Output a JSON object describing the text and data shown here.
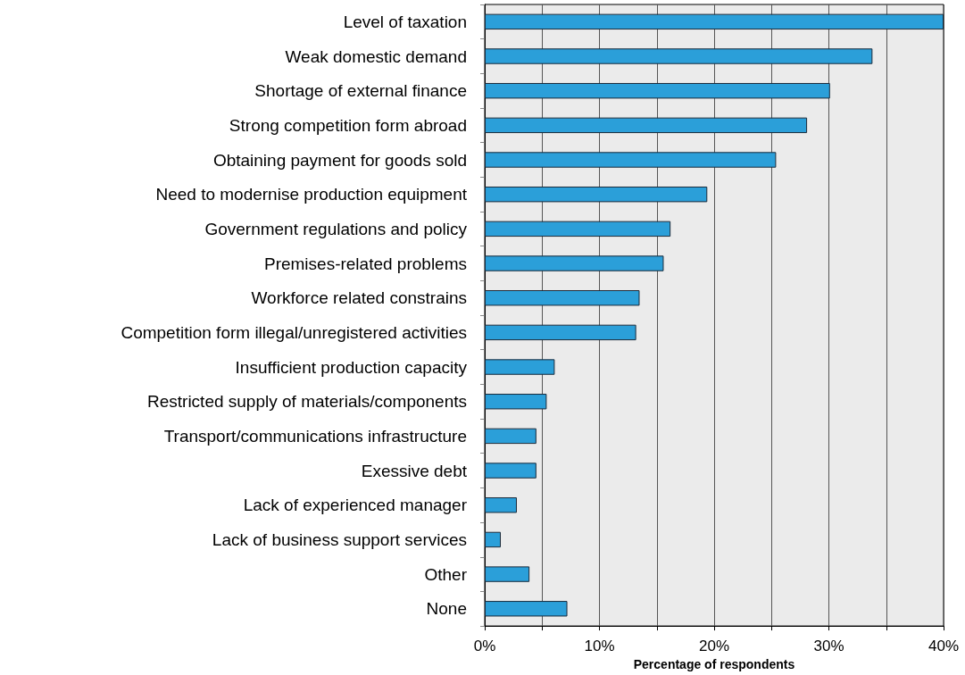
{
  "chart_data": {
    "type": "bar",
    "orientation": "horizontal",
    "xlabel": "Percentage of respondents",
    "categories": [
      "Level of taxation",
      "Weak domestic demand",
      "Shortage of external finance",
      "Strong competition form abroad",
      "Obtaining payment for goods sold",
      "Need to modernise production equipment",
      "Government regulations and policy",
      "Premises-related problems",
      "Workforce related constrains",
      "Competition form illegal/unregistered activities",
      "Insufficient production capacity",
      "Restricted supply of materials/components",
      "Transport/communications infrastructure",
      "Exessive debt",
      "Lack of experienced manager",
      "Lack of business support services",
      "Other",
      "None"
    ],
    "values": [
      40,
      33.8,
      30.1,
      28.1,
      25.4,
      19.4,
      16.2,
      15.6,
      13.5,
      13.2,
      6.1,
      5.4,
      4.5,
      4.5,
      2.8,
      1.4,
      3.9,
      7.2
    ],
    "color": "#2b9fd9",
    "xlim": [
      0,
      40
    ],
    "xticks": [
      {
        "value": 0,
        "label": "0%"
      },
      {
        "value": 5,
        "label": null
      },
      {
        "value": 10,
        "label": "10%"
      },
      {
        "value": 15,
        "label": null
      },
      {
        "value": 20,
        "label": "20%"
      },
      {
        "value": 25,
        "label": null
      },
      {
        "value": 30,
        "label": "30%"
      },
      {
        "value": 35,
        "label": null
      },
      {
        "value": 40,
        "label": "40%"
      }
    ],
    "grid": "x"
  }
}
